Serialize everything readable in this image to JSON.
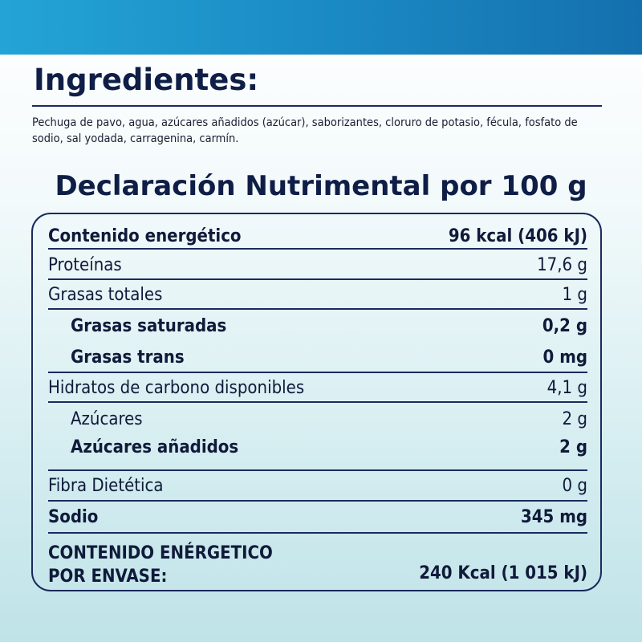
{
  "ingredients": {
    "title": "Ingredientes:",
    "text": "Pechuga de pavo, agua, azúcares añadidos (azúcar), saborizantes, cloruro de potasio, fécula, fosfato de sodio, sal yodada, carragenina, carmín."
  },
  "nutrition": {
    "title": "Declaración Nutrimental por 100 g",
    "rows": [
      {
        "label": "Contenido energético",
        "value": "96 kcal (406 kJ)"
      },
      {
        "label": "Proteínas",
        "value": "17,6 g"
      },
      {
        "label": "Grasas totales",
        "value": "1 g"
      },
      {
        "label": "Grasas saturadas",
        "value": "0,2 g"
      },
      {
        "label": "Grasas trans",
        "value": "0 mg"
      },
      {
        "label": "Hidratos de carbono disponibles",
        "value": "4,1 g"
      },
      {
        "label": "Azúcares",
        "value": "2 g"
      },
      {
        "label": "Azúcares añadidos",
        "value": "2 g"
      },
      {
        "label": "Fibra Dietética",
        "value": "0 g"
      },
      {
        "label": "Sodio",
        "value": "345 mg"
      }
    ],
    "per_package": {
      "label_line1": "CONTENIDO ENÉRGETICO",
      "label_line2": "POR ENVASE:",
      "value": "240 Kcal (1 015 kJ)"
    }
  },
  "colors": {
    "navy": "#0f1e46",
    "top_band": "#1a88c3"
  }
}
